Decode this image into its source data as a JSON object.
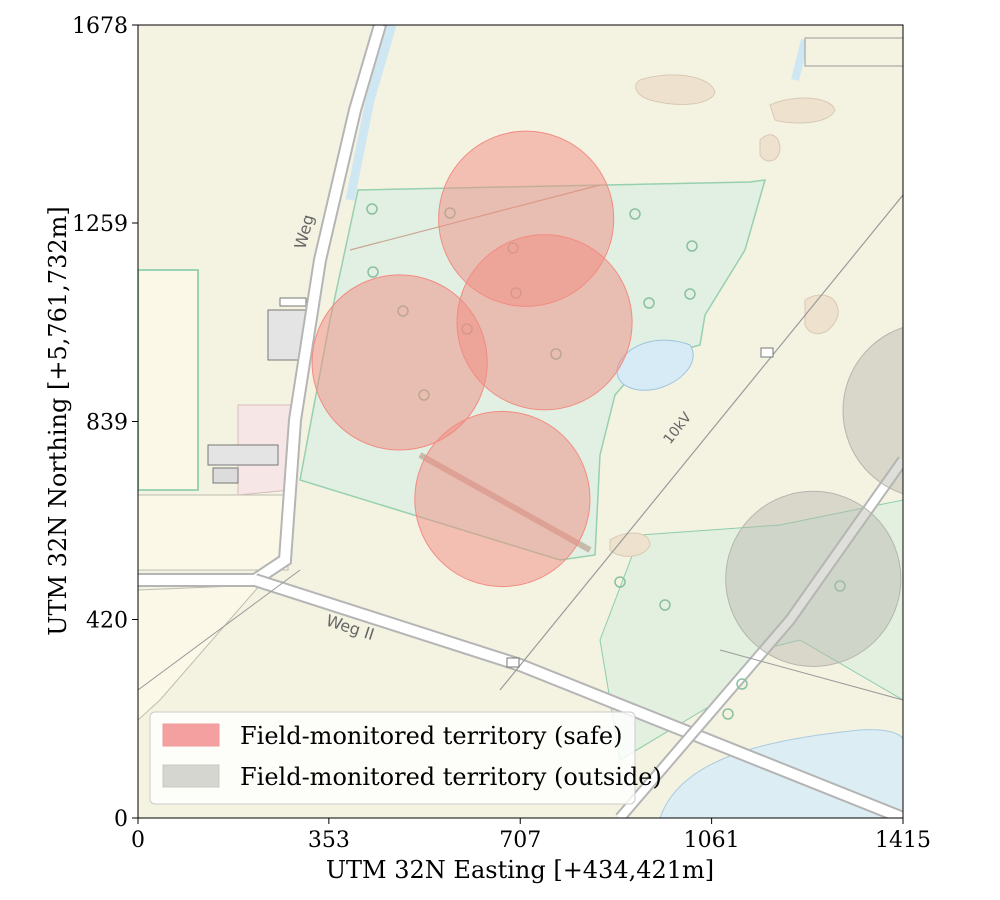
{
  "chart_data": {
    "type": "scatter",
    "title": "",
    "xlabel": "UTM 32N Easting [+434,421m]",
    "ylabel": "UTM 32N Northing [+5,761,732m]",
    "xlim": [
      0,
      1415
    ],
    "ylim": [
      0,
      1678
    ],
    "x_ticks": [
      "0",
      "353",
      "707",
      "1061",
      "1415"
    ],
    "y_ticks": [
      "0",
      "420",
      "839",
      "1259",
      "1678"
    ],
    "grid": false,
    "legend": {
      "placement": "lower-left",
      "entries": [
        {
          "label": "Field-monitored territory (safe)",
          "color": "#f4a0a0"
        },
        {
          "label": "Field-monitored territory (outside)",
          "color": "#c8c8c0"
        }
      ]
    },
    "series": [
      {
        "name": "Field-monitored territory (safe)",
        "color": "#f28b82",
        "radius": 162,
        "centers": [
          {
            "x": 718,
            "y": 1268
          },
          {
            "x": 752,
            "y": 1049
          },
          {
            "x": 484,
            "y": 964
          },
          {
            "x": 674,
            "y": 675
          }
        ]
      },
      {
        "name": "Field-monitored territory (outside)",
        "color": "#b5b5ad",
        "radius": 162,
        "centers": [
          {
            "x": 1466,
            "y": 862
          },
          {
            "x": 1249,
            "y": 506
          }
        ]
      }
    ],
    "annotations": [
      "Weg",
      "Weg II",
      "10kV"
    ]
  }
}
